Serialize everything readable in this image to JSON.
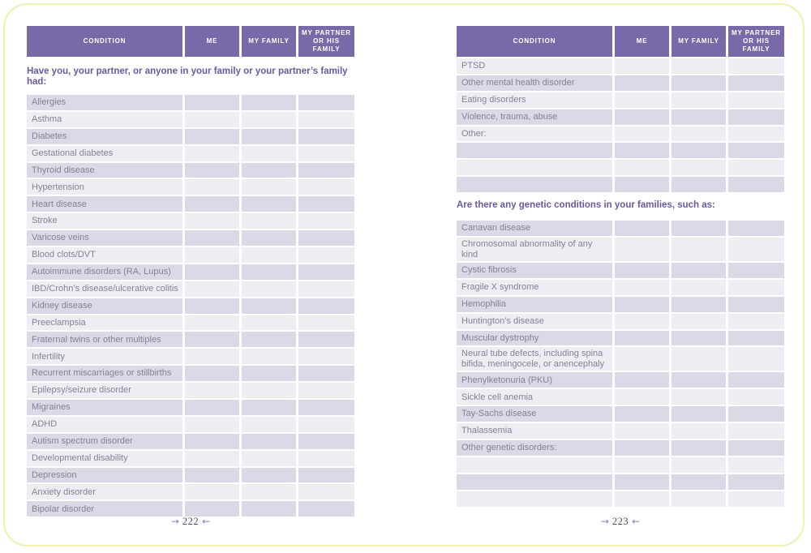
{
  "colors": {
    "header_bg": "#7a69a8",
    "header_text": "#ffffff",
    "row_dark": "#dcd8e8",
    "row_light": "#efedf4",
    "label_text": "#85818f",
    "heading_text": "#6a58a2",
    "border": "#f0f1ae",
    "arrow": "#8b7cc0"
  },
  "table_headers": [
    "CONDITION",
    "ME",
    "MY FAMILY",
    "MY PARTNER OR HIS FAMILY"
  ],
  "arrows": {
    "left": "→",
    "right": "←"
  },
  "left_page": {
    "intro": "Have you, your partner, or anyone in your family or your partner’s family had:",
    "rows": [
      "Allergies",
      "Asthma",
      "Diabetes",
      "Gestational diabetes",
      "Thyroid disease",
      "Hypertension",
      "Heart disease",
      "Stroke",
      "Varicose veins",
      "Blood clots/DVT",
      "Autoimmune disorders (RA, Lupus)",
      "IBD/Crohn’s disease/ulcerative colitis",
      "Kidney disease",
      "Preeclampsia",
      "Fraternal twins or other multiples",
      "Infertility",
      "Recurrent miscarriages or stillbirths",
      "Epilepsy/seizure disorder",
      "Migraines",
      "ADHD",
      "Autism spectrum disorder",
      "Developmental disability",
      "Depression",
      "Anxiety disorder",
      "Bipolar disorder"
    ],
    "page_number": "222"
  },
  "right_page": {
    "rows_top": [
      "PTSD",
      "Other mental health disorder",
      "Eating disorders",
      "Violence, trauma, abuse",
      "Other:",
      "",
      "",
      ""
    ],
    "heading": "Are there any genetic conditions in your families, such as:",
    "rows_bottom": [
      "Canavan disease",
      "Chromosomal abnormality of any kind",
      "Cystic fibrosis",
      "Fragile X syndrome",
      "Hemophilia",
      "Huntington’s disease",
      "Muscular dystrophy",
      "Neural tube defects, including spina bifida, meningocele, or anencephaly",
      "Phenylketonuria (PKU)",
      "Sickle cell anemia",
      "Tay-Sachs disease",
      "Thalassemia",
      "Other genetic disorders:",
      "",
      "",
      ""
    ],
    "page_number": "223"
  }
}
